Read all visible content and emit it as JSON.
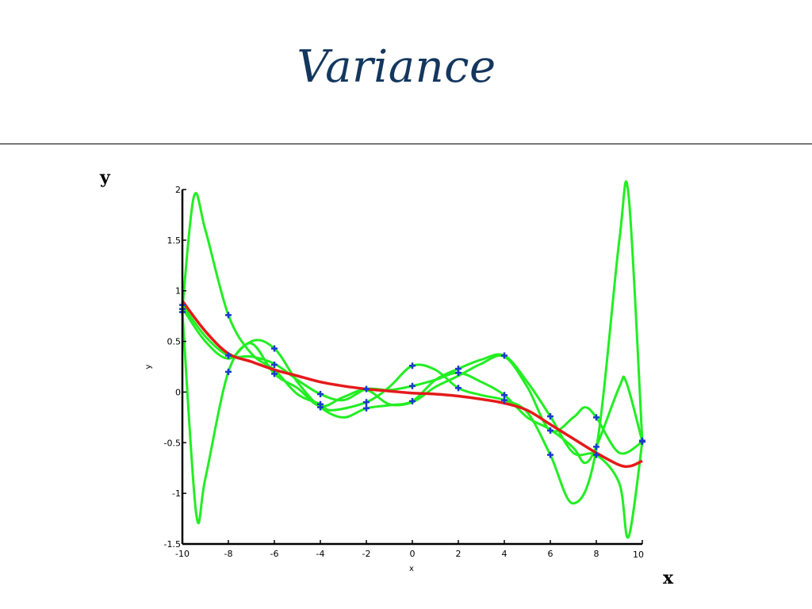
{
  "slide": {
    "title": "Variance",
    "y_label": "y",
    "x_label": "x"
  },
  "colors": {
    "title": "#14375e",
    "mean_curve": "#e51a1a",
    "sample_curves": "#22ee22",
    "markers": "#1a3acc",
    "axis": "#000000"
  },
  "chart_data": {
    "type": "line",
    "xlabel": "x",
    "ylabel": "y",
    "xlim": [
      -10,
      10
    ],
    "ylim": [
      -1.5,
      2
    ],
    "x_ticks": [
      -10,
      -8,
      -6,
      -4,
      -2,
      0,
      2,
      4,
      6,
      8,
      10
    ],
    "y_ticks": [
      -1.5,
      -1,
      -0.5,
      0,
      0.5,
      1,
      1.5,
      2
    ],
    "y_tick_labels": [
      "-1.5",
      "-1",
      "-0.5",
      "0",
      "0.5",
      "1",
      "1.5",
      "2"
    ],
    "grid": false,
    "legend": "none",
    "mean_series": {
      "color": "#e51a1a",
      "points": [
        [
          -10,
          0.9
        ],
        [
          -9,
          0.6
        ],
        [
          -8,
          0.38
        ],
        [
          -7,
          0.3
        ],
        [
          -6,
          0.22
        ],
        [
          -5,
          0.16
        ],
        [
          -4,
          0.1
        ],
        [
          -3,
          0.06
        ],
        [
          -2,
          0.03
        ],
        [
          -1,
          0.01
        ],
        [
          0,
          -0.01
        ],
        [
          1,
          -0.02
        ],
        [
          2,
          -0.04
        ],
        [
          3,
          -0.07
        ],
        [
          4,
          -0.11
        ],
        [
          5,
          -0.18
        ],
        [
          6,
          -0.32
        ],
        [
          7,
          -0.46
        ],
        [
          8,
          -0.6
        ],
        [
          9,
          -0.72
        ],
        [
          9.5,
          -0.73
        ],
        [
          10,
          -0.68
        ]
      ]
    },
    "sample_series": [
      {
        "color": "#22ee22",
        "points": [
          [
            -10,
            0.82
          ],
          [
            -9.5,
            1.93
          ],
          [
            -9,
            1.6
          ],
          [
            -8,
            0.76
          ],
          [
            -7,
            0.38
          ],
          [
            -6,
            0.22
          ],
          [
            -5,
            -0.02
          ],
          [
            -4,
            -0.12
          ],
          [
            -3.5,
            -0.18
          ],
          [
            -2,
            -0.1
          ],
          [
            -1,
            0.05
          ],
          [
            0,
            0.26
          ],
          [
            1,
            0.22
          ],
          [
            2,
            0.04
          ],
          [
            3,
            -0.03
          ],
          [
            4,
            -0.08
          ],
          [
            5,
            -0.2
          ],
          [
            6,
            -0.62
          ],
          [
            7,
            -1.1
          ],
          [
            8,
            -0.56
          ],
          [
            9,
            1.5
          ],
          [
            9.4,
            1.95
          ],
          [
            10,
            -0.49
          ]
        ]
      },
      {
        "color": "#22ee22",
        "points": [
          [
            -10,
            0.8
          ],
          [
            -9.4,
            -1.2
          ],
          [
            -9,
            -0.85
          ],
          [
            -8,
            0.2
          ],
          [
            -7,
            0.5
          ],
          [
            -6,
            0.43
          ],
          [
            -5,
            0.1
          ],
          [
            -4,
            -0.15
          ],
          [
            -3,
            -0.25
          ],
          [
            -2,
            -0.16
          ],
          [
            -1,
            -0.13
          ],
          [
            0,
            -0.09
          ],
          [
            1,
            0.12
          ],
          [
            2,
            0.23
          ],
          [
            3,
            0.32
          ],
          [
            4,
            0.36
          ],
          [
            5,
            0.1
          ],
          [
            6,
            -0.24
          ],
          [
            7,
            -0.6
          ],
          [
            8,
            -0.62
          ],
          [
            9,
            -0.9
          ],
          [
            9.4,
            -1.43
          ],
          [
            10,
            -0.49
          ]
        ]
      },
      {
        "color": "#22ee22",
        "points": [
          [
            -10,
            0.86
          ],
          [
            -9,
            0.55
          ],
          [
            -8,
            0.36
          ],
          [
            -7,
            0.35
          ],
          [
            -6,
            0.28
          ],
          [
            -5,
            0.12
          ],
          [
            -4,
            -0.02
          ],
          [
            -3,
            -0.08
          ],
          [
            -2,
            0.03
          ],
          [
            -1,
            0.02
          ],
          [
            0,
            0.06
          ],
          [
            1,
            0.12
          ],
          [
            2,
            0.19
          ],
          [
            3,
            0.1
          ],
          [
            4,
            -0.03
          ],
          [
            5,
            -0.25
          ],
          [
            6,
            -0.37
          ],
          [
            7,
            -0.55
          ],
          [
            7.5,
            -0.7
          ],
          [
            8,
            -0.54
          ],
          [
            9,
            0.05
          ],
          [
            9.3,
            0.1
          ],
          [
            10,
            -0.49
          ]
        ]
      },
      {
        "color": "#22ee22",
        "points": [
          [
            -10,
            0.83
          ],
          [
            -9,
            0.5
          ],
          [
            -8,
            0.33
          ],
          [
            -7,
            0.48
          ],
          [
            -6,
            0.18
          ],
          [
            -5,
            0.04
          ],
          [
            -4,
            -0.14
          ],
          [
            -3,
            -0.05
          ],
          [
            -2,
            0.02
          ],
          [
            -1,
            -0.12
          ],
          [
            0,
            -0.1
          ],
          [
            1,
            0.05
          ],
          [
            2,
            0.16
          ],
          [
            3,
            0.28
          ],
          [
            4,
            0.35
          ],
          [
            5,
            0.05
          ],
          [
            6,
            -0.38
          ],
          [
            7,
            -0.25
          ],
          [
            7.5,
            -0.15
          ],
          [
            8,
            -0.25
          ],
          [
            9,
            -0.6
          ],
          [
            10,
            -0.49
          ]
        ]
      }
    ],
    "markers": [
      [
        -10,
        0.79
      ],
      [
        -10,
        0.82
      ],
      [
        -10,
        0.86
      ],
      [
        -8,
        0.76
      ],
      [
        -8,
        0.36
      ],
      [
        -8,
        0.2
      ],
      [
        -6,
        0.43
      ],
      [
        -6,
        0.27
      ],
      [
        -6,
        0.18
      ],
      [
        -4,
        -0.02
      ],
      [
        -4,
        -0.12
      ],
      [
        -4,
        -0.15
      ],
      [
        -2,
        0.03
      ],
      [
        -2,
        -0.1
      ],
      [
        -2,
        -0.16
      ],
      [
        0,
        0.26
      ],
      [
        0,
        0.06
      ],
      [
        0,
        -0.09
      ],
      [
        2,
        0.23
      ],
      [
        2,
        0.19
      ],
      [
        2,
        0.04
      ],
      [
        4,
        0.36
      ],
      [
        4,
        -0.03
      ],
      [
        4,
        -0.08
      ],
      [
        6,
        -0.24
      ],
      [
        6,
        -0.38
      ],
      [
        6,
        -0.62
      ],
      [
        8,
        -0.25
      ],
      [
        8,
        -0.54
      ],
      [
        8,
        -0.62
      ],
      [
        10,
        -0.49
      ],
      [
        10,
        -0.48
      ]
    ]
  }
}
